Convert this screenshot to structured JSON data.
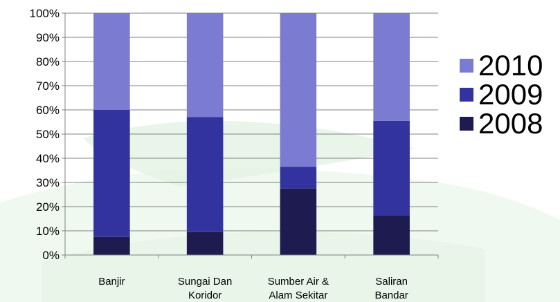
{
  "chart_data": {
    "type": "bar",
    "stacked": true,
    "normalized": true,
    "categories": [
      [
        "Banjir"
      ],
      [
        "Sungai Dan",
        "Koridor"
      ],
      [
        "Sumber Air &",
        "Alam Sekitar"
      ],
      [
        "Saliran",
        "Bandar"
      ]
    ],
    "series": [
      {
        "name": "2008",
        "color": "#1d1b4f",
        "values": [
          7.5,
          9.5,
          27.5,
          16.5
        ]
      },
      {
        "name": "2009",
        "color": "#3333a0",
        "values": [
          52.5,
          47.5,
          9.0,
          39.0
        ]
      },
      {
        "name": "2010",
        "color": "#7b7bd2",
        "values": [
          40.0,
          43.0,
          63.5,
          44.5
        ]
      }
    ],
    "y_ticks": [
      "0%",
      "10%",
      "20%",
      "30%",
      "40%",
      "50%",
      "60%",
      "70%",
      "80%",
      "90%",
      "100%"
    ],
    "ylim": [
      0,
      100
    ],
    "grid": true,
    "legend_position": "right",
    "legend_order": [
      "2010",
      "2009",
      "2008"
    ],
    "colors": {
      "gridline": "#808080",
      "axis": "#808080",
      "background_swoosh": "#dff2df"
    }
  }
}
